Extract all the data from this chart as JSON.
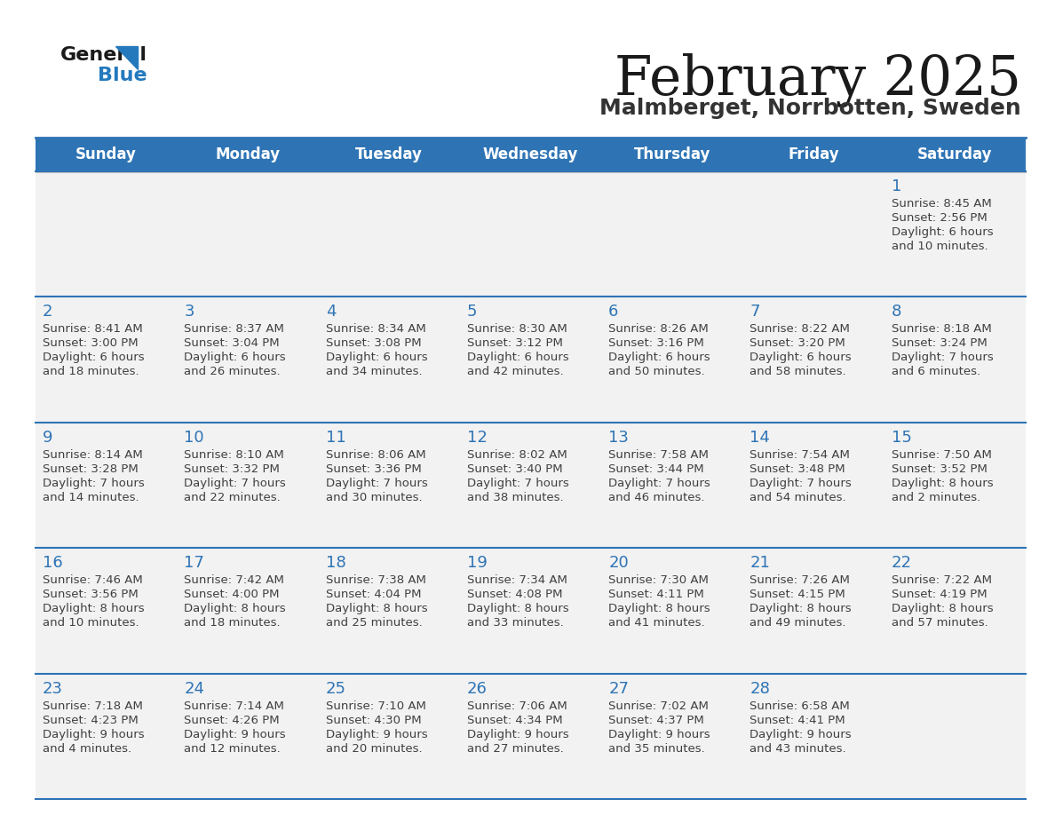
{
  "title": "February 2025",
  "subtitle": "Malmberget, Norrbotten, Sweden",
  "header_bg": "#2E74B5",
  "header_text_color": "#FFFFFF",
  "cell_bg": "#F2F2F2",
  "day_number_color": "#2E74B5",
  "info_text_color": "#404040",
  "border_color": "#2E74B5",
  "separator_color": "#AAAAAA",
  "days_of_week": [
    "Sunday",
    "Monday",
    "Tuesday",
    "Wednesday",
    "Thursday",
    "Friday",
    "Saturday"
  ],
  "weeks": [
    [
      {
        "day": null,
        "sunrise": null,
        "sunset": null,
        "daylight": null
      },
      {
        "day": null,
        "sunrise": null,
        "sunset": null,
        "daylight": null
      },
      {
        "day": null,
        "sunrise": null,
        "sunset": null,
        "daylight": null
      },
      {
        "day": null,
        "sunrise": null,
        "sunset": null,
        "daylight": null
      },
      {
        "day": null,
        "sunrise": null,
        "sunset": null,
        "daylight": null
      },
      {
        "day": null,
        "sunrise": null,
        "sunset": null,
        "daylight": null
      },
      {
        "day": 1,
        "sunrise": "8:45 AM",
        "sunset": "2:56 PM",
        "daylight": "6 hours\nand 10 minutes."
      }
    ],
    [
      {
        "day": 2,
        "sunrise": "8:41 AM",
        "sunset": "3:00 PM",
        "daylight": "6 hours\nand 18 minutes."
      },
      {
        "day": 3,
        "sunrise": "8:37 AM",
        "sunset": "3:04 PM",
        "daylight": "6 hours\nand 26 minutes."
      },
      {
        "day": 4,
        "sunrise": "8:34 AM",
        "sunset": "3:08 PM",
        "daylight": "6 hours\nand 34 minutes."
      },
      {
        "day": 5,
        "sunrise": "8:30 AM",
        "sunset": "3:12 PM",
        "daylight": "6 hours\nand 42 minutes."
      },
      {
        "day": 6,
        "sunrise": "8:26 AM",
        "sunset": "3:16 PM",
        "daylight": "6 hours\nand 50 minutes."
      },
      {
        "day": 7,
        "sunrise": "8:22 AM",
        "sunset": "3:20 PM",
        "daylight": "6 hours\nand 58 minutes."
      },
      {
        "day": 8,
        "sunrise": "8:18 AM",
        "sunset": "3:24 PM",
        "daylight": "7 hours\nand 6 minutes."
      }
    ],
    [
      {
        "day": 9,
        "sunrise": "8:14 AM",
        "sunset": "3:28 PM",
        "daylight": "7 hours\nand 14 minutes."
      },
      {
        "day": 10,
        "sunrise": "8:10 AM",
        "sunset": "3:32 PM",
        "daylight": "7 hours\nand 22 minutes."
      },
      {
        "day": 11,
        "sunrise": "8:06 AM",
        "sunset": "3:36 PM",
        "daylight": "7 hours\nand 30 minutes."
      },
      {
        "day": 12,
        "sunrise": "8:02 AM",
        "sunset": "3:40 PM",
        "daylight": "7 hours\nand 38 minutes."
      },
      {
        "day": 13,
        "sunrise": "7:58 AM",
        "sunset": "3:44 PM",
        "daylight": "7 hours\nand 46 minutes."
      },
      {
        "day": 14,
        "sunrise": "7:54 AM",
        "sunset": "3:48 PM",
        "daylight": "7 hours\nand 54 minutes."
      },
      {
        "day": 15,
        "sunrise": "7:50 AM",
        "sunset": "3:52 PM",
        "daylight": "8 hours\nand 2 minutes."
      }
    ],
    [
      {
        "day": 16,
        "sunrise": "7:46 AM",
        "sunset": "3:56 PM",
        "daylight": "8 hours\nand 10 minutes."
      },
      {
        "day": 17,
        "sunrise": "7:42 AM",
        "sunset": "4:00 PM",
        "daylight": "8 hours\nand 18 minutes."
      },
      {
        "day": 18,
        "sunrise": "7:38 AM",
        "sunset": "4:04 PM",
        "daylight": "8 hours\nand 25 minutes."
      },
      {
        "day": 19,
        "sunrise": "7:34 AM",
        "sunset": "4:08 PM",
        "daylight": "8 hours\nand 33 minutes."
      },
      {
        "day": 20,
        "sunrise": "7:30 AM",
        "sunset": "4:11 PM",
        "daylight": "8 hours\nand 41 minutes."
      },
      {
        "day": 21,
        "sunrise": "7:26 AM",
        "sunset": "4:15 PM",
        "daylight": "8 hours\nand 49 minutes."
      },
      {
        "day": 22,
        "sunrise": "7:22 AM",
        "sunset": "4:19 PM",
        "daylight": "8 hours\nand 57 minutes."
      }
    ],
    [
      {
        "day": 23,
        "sunrise": "7:18 AM",
        "sunset": "4:23 PM",
        "daylight": "9 hours\nand 4 minutes."
      },
      {
        "day": 24,
        "sunrise": "7:14 AM",
        "sunset": "4:26 PM",
        "daylight": "9 hours\nand 12 minutes."
      },
      {
        "day": 25,
        "sunrise": "7:10 AM",
        "sunset": "4:30 PM",
        "daylight": "9 hours\nand 20 minutes."
      },
      {
        "day": 26,
        "sunrise": "7:06 AM",
        "sunset": "4:34 PM",
        "daylight": "9 hours\nand 27 minutes."
      },
      {
        "day": 27,
        "sunrise": "7:02 AM",
        "sunset": "4:37 PM",
        "daylight": "9 hours\nand 35 minutes."
      },
      {
        "day": 28,
        "sunrise": "6:58 AM",
        "sunset": "4:41 PM",
        "daylight": "9 hours\nand 43 minutes."
      },
      {
        "day": null,
        "sunrise": null,
        "sunset": null,
        "daylight": null
      }
    ]
  ],
  "logo_general_color": "#1a1a1a",
  "logo_blue_color": "#2479BD",
  "logo_triangle_color": "#2479BD"
}
